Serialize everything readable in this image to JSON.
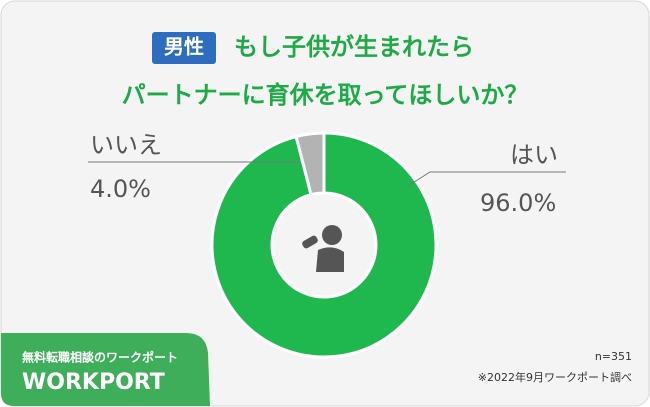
{
  "chart_data": {
    "type": "pie",
    "badge": "男性",
    "title": [
      "もし子供が生まれたら",
      "パートナーに育休を取ってほしいか？"
    ],
    "categories": [
      "はい",
      "いいえ"
    ],
    "values": [
      96.0,
      4.0
    ],
    "value_labels": [
      "96.0%",
      "4.0%"
    ],
    "colors": [
      "#1fb84f",
      "#b3b3b3"
    ],
    "note": "n=351",
    "source": "※2022年9月ワークポート調べ",
    "footer": {
      "tagline": "無料転職相談のワークポート",
      "brand": "WORKPORT"
    }
  }
}
